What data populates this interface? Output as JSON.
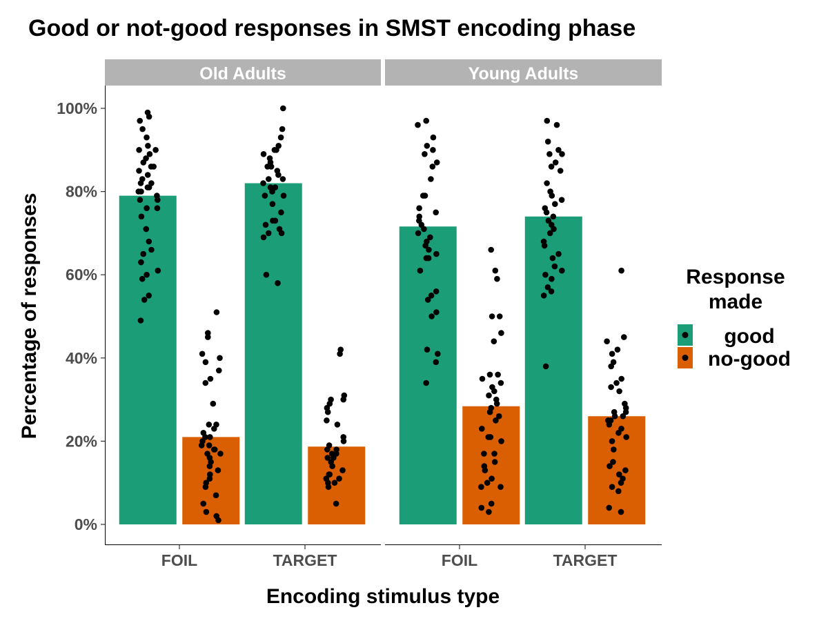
{
  "chart_data": {
    "type": "bar",
    "title": "Good or not-good responses in SMST encoding phase",
    "xlabel": "Encoding stimulus type",
    "ylabel": "Percentage of responses",
    "ylim": [
      -0.05,
      1.05
    ],
    "y_ticks": [
      0,
      0.2,
      0.4,
      0.6,
      0.8,
      1.0
    ],
    "y_tick_labels": [
      "0%",
      "20%",
      "40%",
      "60%",
      "80%",
      "100%"
    ],
    "categories": [
      "FOIL",
      "TARGET"
    ],
    "facets": [
      "Old Adults",
      "Young Adults"
    ],
    "legend": {
      "title_lines": [
        "Response",
        "made"
      ],
      "position": "right",
      "entries": [
        {
          "key": "good",
          "label": "good",
          "color": "#1b9e77"
        },
        {
          "key": "no-good",
          "label": "no-good",
          "color": "#d95f02"
        }
      ]
    },
    "bars": {
      "Old Adults": {
        "FOIL": {
          "good": 0.79,
          "no-good": 0.21
        },
        "TARGET": {
          "good": 0.82,
          "no-good": 0.187
        }
      },
      "Young Adults": {
        "FOIL": {
          "good": 0.716,
          "no-good": 0.284
        },
        "TARGET": {
          "good": 0.74,
          "no-good": 0.26
        }
      }
    },
    "points": {
      "Old Adults": {
        "FOIL": {
          "good": [
            0.99,
            0.98,
            0.97,
            0.95,
            0.93,
            0.91,
            0.9,
            0.9,
            0.89,
            0.88,
            0.87,
            0.86,
            0.86,
            0.85,
            0.84,
            0.83,
            0.82,
            0.82,
            0.81,
            0.81,
            0.8,
            0.8,
            0.79,
            0.78,
            0.78,
            0.76,
            0.76,
            0.74,
            0.71,
            0.68,
            0.66,
            0.65,
            0.63,
            0.61,
            0.6,
            0.59,
            0.55,
            0.54,
            0.49
          ],
          "no-good": [
            0.51,
            0.46,
            0.45,
            0.41,
            0.4,
            0.39,
            0.37,
            0.35,
            0.34,
            0.29,
            0.24,
            0.24,
            0.23,
            0.22,
            0.21,
            0.21,
            0.2,
            0.19,
            0.19,
            0.18,
            0.18,
            0.17,
            0.17,
            0.16,
            0.15,
            0.14,
            0.13,
            0.12,
            0.11,
            0.1,
            0.09,
            0.07,
            0.05,
            0.03,
            0.02,
            0.01
          ]
        },
        "TARGET": {
          "good": [
            1.0,
            0.95,
            0.93,
            0.91,
            0.9,
            0.9,
            0.89,
            0.88,
            0.87,
            0.86,
            0.86,
            0.85,
            0.84,
            0.83,
            0.83,
            0.82,
            0.81,
            0.81,
            0.8,
            0.79,
            0.79,
            0.77,
            0.75,
            0.73,
            0.73,
            0.72,
            0.71,
            0.7,
            0.7,
            0.69,
            0.6,
            0.58
          ],
          "no-good": [
            0.42,
            0.41,
            0.31,
            0.3,
            0.3,
            0.29,
            0.28,
            0.27,
            0.25,
            0.24,
            0.21,
            0.2,
            0.19,
            0.18,
            0.18,
            0.17,
            0.17,
            0.16,
            0.16,
            0.15,
            0.14,
            0.13,
            0.12,
            0.12,
            0.11,
            0.11,
            0.1,
            0.1,
            0.09,
            0.05
          ]
        }
      },
      "Young Adults": {
        "FOIL": {
          "good": [
            0.97,
            0.96,
            0.93,
            0.91,
            0.9,
            0.89,
            0.87,
            0.86,
            0.83,
            0.79,
            0.79,
            0.76,
            0.75,
            0.74,
            0.73,
            0.72,
            0.71,
            0.7,
            0.69,
            0.68,
            0.67,
            0.66,
            0.65,
            0.64,
            0.64,
            0.61,
            0.56,
            0.55,
            0.54,
            0.51,
            0.5,
            0.42,
            0.41,
            0.39,
            0.34
          ],
          "no-good": [
            0.66,
            0.61,
            0.59,
            0.5,
            0.5,
            0.46,
            0.44,
            0.36,
            0.36,
            0.35,
            0.34,
            0.33,
            0.32,
            0.31,
            0.3,
            0.29,
            0.28,
            0.27,
            0.26,
            0.25,
            0.23,
            0.21,
            0.21,
            0.2,
            0.17,
            0.17,
            0.15,
            0.14,
            0.13,
            0.11,
            0.1,
            0.09,
            0.09,
            0.05,
            0.04,
            0.03
          ]
        },
        "TARGET": {
          "good": [
            0.97,
            0.96,
            0.92,
            0.9,
            0.89,
            0.89,
            0.87,
            0.86,
            0.85,
            0.82,
            0.8,
            0.79,
            0.78,
            0.77,
            0.76,
            0.75,
            0.74,
            0.73,
            0.72,
            0.71,
            0.7,
            0.68,
            0.67,
            0.65,
            0.64,
            0.62,
            0.61,
            0.6,
            0.59,
            0.57,
            0.56,
            0.55,
            0.38
          ],
          "no-good": [
            0.61,
            0.45,
            0.44,
            0.42,
            0.41,
            0.39,
            0.38,
            0.35,
            0.34,
            0.33,
            0.32,
            0.29,
            0.28,
            0.27,
            0.27,
            0.26,
            0.26,
            0.25,
            0.25,
            0.24,
            0.23,
            0.22,
            0.21,
            0.2,
            0.18,
            0.15,
            0.14,
            0.13,
            0.12,
            0.11,
            0.1,
            0.09,
            0.08,
            0.04,
            0.03
          ]
        }
      }
    }
  }
}
